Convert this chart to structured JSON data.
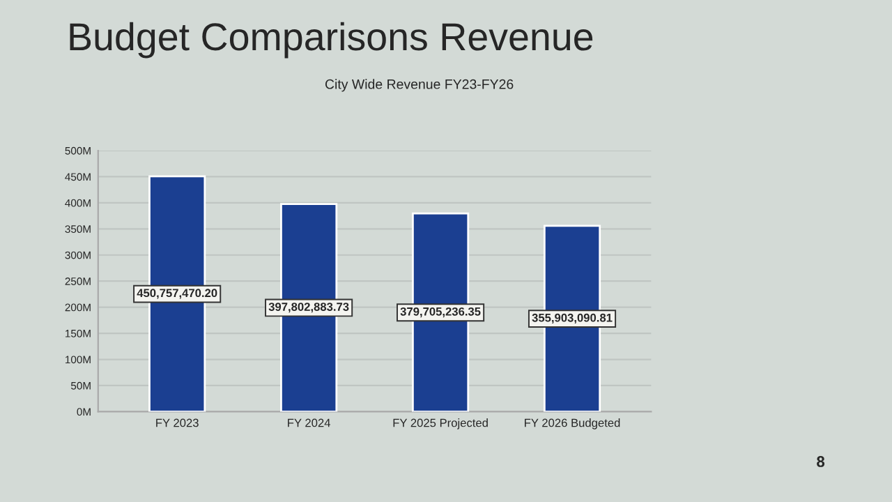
{
  "chart_data": {
    "type": "bar",
    "title": "Budget Comparisons Revenue",
    "subtitle": "City Wide Revenue FY23-FY26",
    "categories": [
      "FY 2023",
      "FY 2024",
      "FY 2025 Projected",
      "FY 2026 Budgeted"
    ],
    "values": [
      450757470.2,
      397802883.73,
      379705236.35,
      355903090.81
    ],
    "value_labels": [
      "450,757,470.20",
      "397,802,883.73",
      "379,705,236.35",
      "355,903,090.81"
    ],
    "color": "#1b3f91",
    "ylim": [
      0,
      500000000
    ],
    "yticks": [
      {
        "value": 0,
        "label": "0M"
      },
      {
        "value": 50000000,
        "label": "50M"
      },
      {
        "value": 100000000,
        "label": "100M"
      },
      {
        "value": 150000000,
        "label": "150M"
      },
      {
        "value": 200000000,
        "label": "200M"
      },
      {
        "value": 250000000,
        "label": "250M"
      },
      {
        "value": 300000000,
        "label": "300M"
      },
      {
        "value": 350000000,
        "label": "350M"
      },
      {
        "value": 400000000,
        "label": "400M"
      },
      {
        "value": 450000000,
        "label": "450M"
      },
      {
        "value": 500000000,
        "label": "500M"
      }
    ],
    "grid": "y",
    "annotations": [
      "8"
    ]
  }
}
